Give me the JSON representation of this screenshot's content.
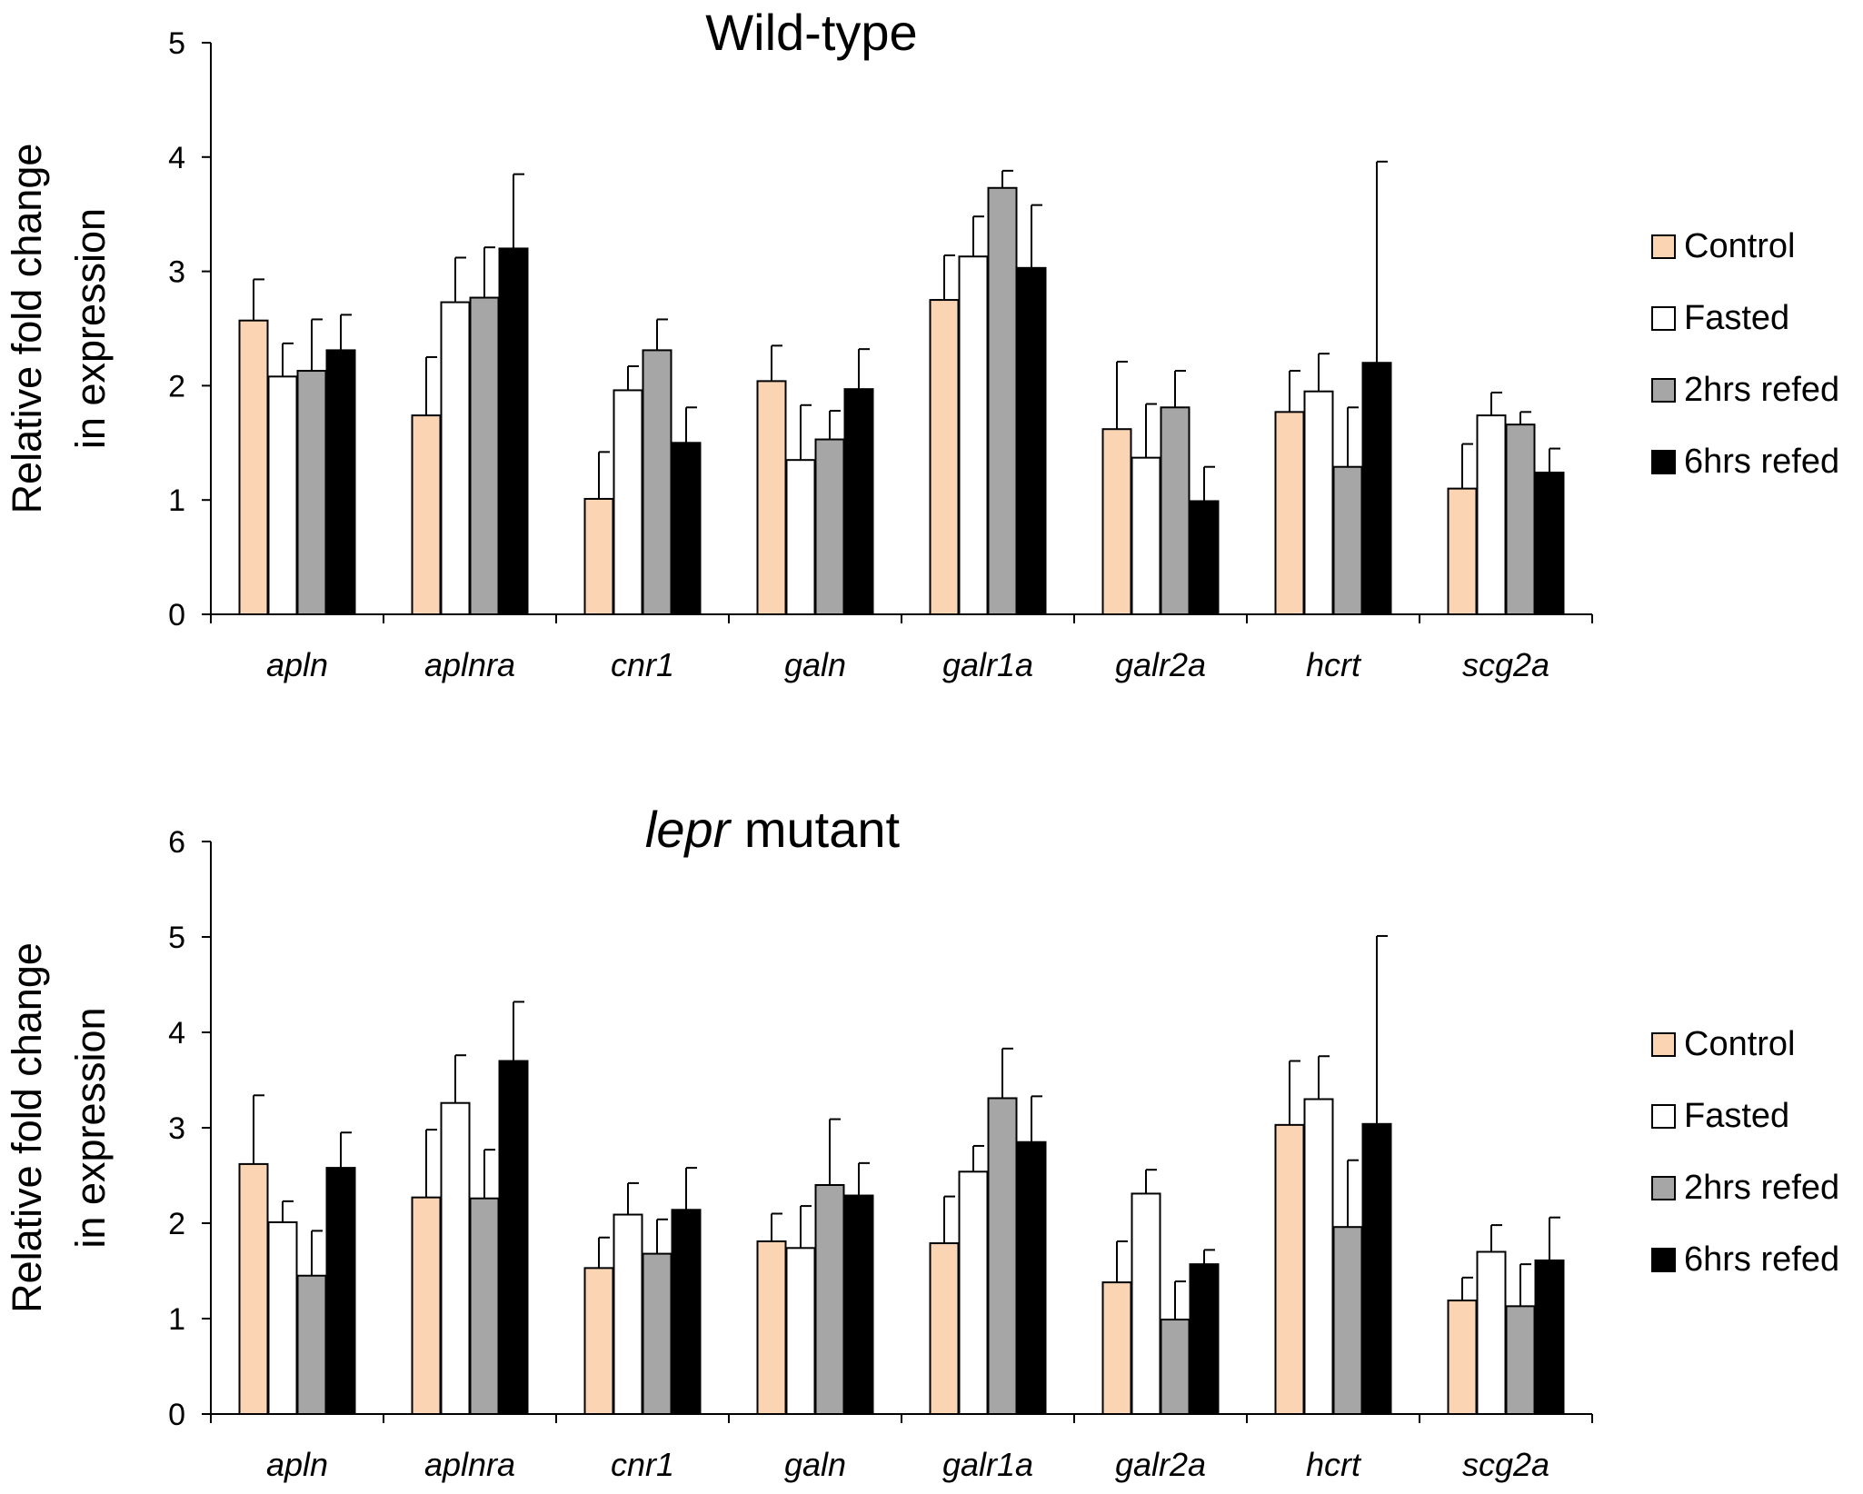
{
  "chart_data": [
    {
      "type": "bar",
      "title": "Wild-type",
      "title_italic_prefix": "",
      "ylabel_lines": [
        "Relative fold change",
        "in expression"
      ],
      "ylim": [
        0,
        5
      ],
      "yticks": [
        0,
        1,
        2,
        3,
        4,
        5
      ],
      "categories": [
        "apln",
        "aplnra",
        "cnr1",
        "galn",
        "galr1a",
        "galr2a",
        "hcrt",
        "scg2a"
      ],
      "series": [
        {
          "name": "Control",
          "color": "#fad4b3",
          "values": [
            2.57,
            1.74,
            1.01,
            2.04,
            2.75,
            1.62,
            1.77,
            1.1
          ],
          "errors": [
            0.36,
            0.51,
            0.41,
            0.31,
            0.39,
            0.59,
            0.36,
            0.39
          ]
        },
        {
          "name": "Fasted",
          "color": "#ffffff",
          "values": [
            2.08,
            2.73,
            1.96,
            1.35,
            3.13,
            1.37,
            1.95,
            1.74
          ],
          "errors": [
            0.29,
            0.39,
            0.21,
            0.48,
            0.35,
            0.47,
            0.33,
            0.2
          ]
        },
        {
          "name": "2hrs refed",
          "color": "#a6a6a6",
          "values": [
            2.13,
            2.77,
            2.31,
            1.53,
            3.73,
            1.81,
            1.29,
            1.66
          ],
          "errors": [
            0.45,
            0.44,
            0.27,
            0.25,
            0.15,
            0.32,
            0.52,
            0.11
          ]
        },
        {
          "name": "6hrs refed",
          "color": "#000000",
          "values": [
            2.31,
            3.2,
            1.5,
            1.97,
            3.03,
            0.99,
            2.2,
            1.24
          ],
          "errors": [
            0.31,
            0.65,
            0.31,
            0.35,
            0.55,
            0.3,
            1.76,
            0.21
          ]
        }
      ],
      "legend_position": "right"
    },
    {
      "type": "bar",
      "title": "mutant",
      "title_italic_prefix": "lepr",
      "ylabel_lines": [
        "Relative fold change",
        "in expression"
      ],
      "ylim": [
        0,
        6
      ],
      "yticks": [
        0,
        1,
        2,
        3,
        4,
        5,
        6
      ],
      "categories": [
        "apln",
        "aplnra",
        "cnr1",
        "galn",
        "galr1a",
        "galr2a",
        "hcrt",
        "scg2a"
      ],
      "series": [
        {
          "name": "Control",
          "color": "#fad4b3",
          "values": [
            2.62,
            2.27,
            1.53,
            1.81,
            1.79,
            1.38,
            3.03,
            1.19
          ],
          "errors": [
            0.72,
            0.71,
            0.32,
            0.29,
            0.49,
            0.43,
            0.67,
            0.24
          ]
        },
        {
          "name": "Fasted",
          "color": "#ffffff",
          "values": [
            2.01,
            3.26,
            2.09,
            1.74,
            2.54,
            2.31,
            3.3,
            1.7
          ],
          "errors": [
            0.22,
            0.5,
            0.33,
            0.44,
            0.27,
            0.25,
            0.45,
            0.28
          ]
        },
        {
          "name": "2hrs refed",
          "color": "#a6a6a6",
          "values": [
            1.45,
            2.26,
            1.68,
            2.4,
            3.31,
            0.99,
            1.96,
            1.13
          ],
          "errors": [
            0.47,
            0.51,
            0.36,
            0.69,
            0.52,
            0.4,
            0.7,
            0.44
          ]
        },
        {
          "name": "6hrs refed",
          "color": "#000000",
          "values": [
            2.58,
            3.7,
            2.14,
            2.29,
            2.85,
            1.57,
            3.04,
            1.61
          ],
          "errors": [
            0.37,
            0.62,
            0.44,
            0.34,
            0.48,
            0.15,
            1.97,
            0.45
          ]
        }
      ],
      "legend_position": "right"
    }
  ]
}
